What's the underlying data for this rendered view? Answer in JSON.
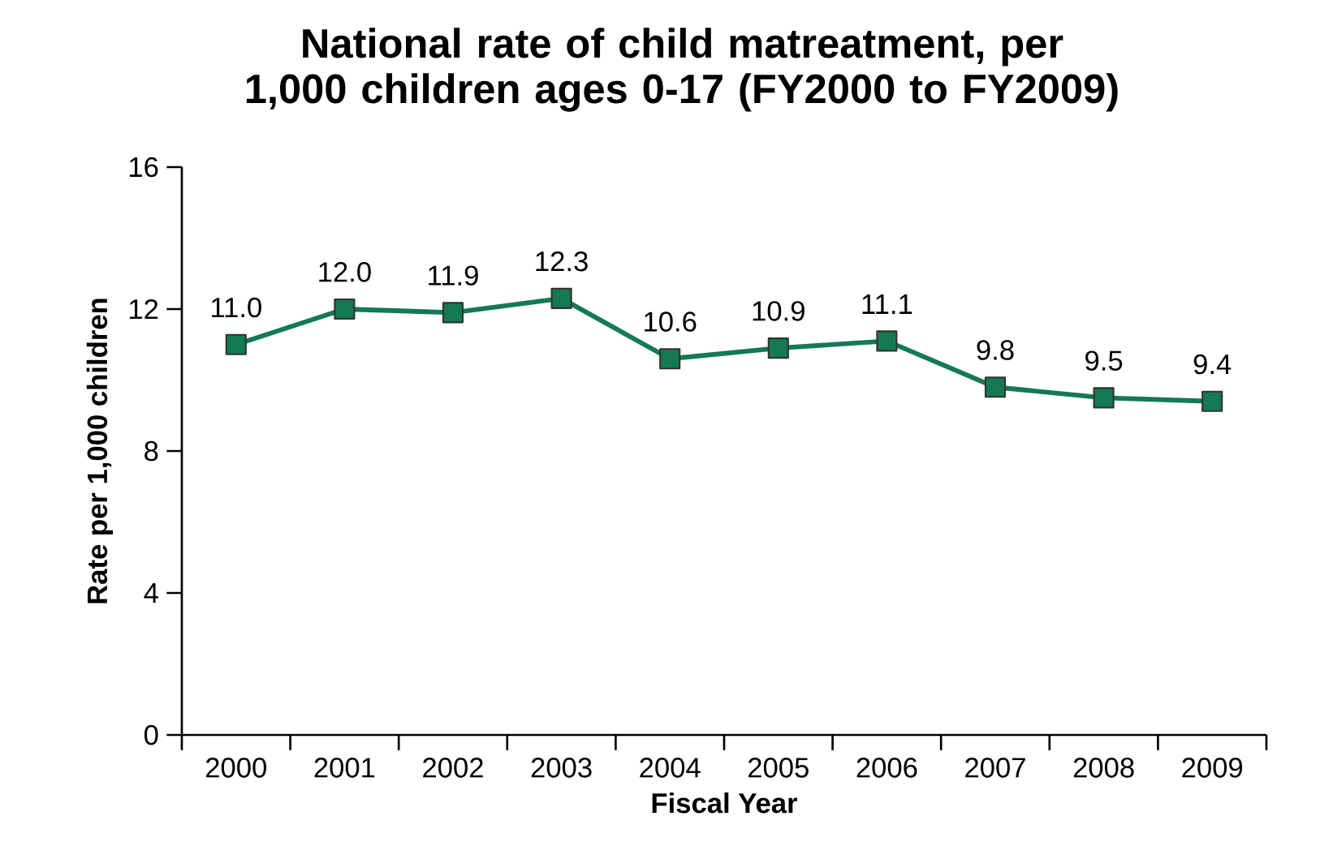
{
  "chart_data": {
    "type": "line",
    "title": "National rate of child matreatment, per 1,000 children ages 0-17 (FY2000 to FY2009)",
    "xlabel": "Fiscal Year",
    "ylabel": "Rate per 1,000 children",
    "categories": [
      "2000",
      "2001",
      "2002",
      "2003",
      "2004",
      "2005",
      "2006",
      "2007",
      "2008",
      "2009"
    ],
    "values": [
      11.0,
      12.0,
      11.9,
      12.3,
      10.6,
      10.9,
      11.1,
      9.8,
      9.5,
      9.4
    ],
    "value_labels": [
      "11.0",
      "12.0",
      "11.9",
      "12.3",
      "10.6",
      "10.9",
      "11.1",
      "9.8",
      "9.5",
      "9.4"
    ],
    "color": "#137a52",
    "marker": "square",
    "line_style": "solid",
    "ylim": [
      0,
      16
    ],
    "yticks": [
      0,
      4,
      8,
      12,
      16
    ],
    "grid": false
  }
}
